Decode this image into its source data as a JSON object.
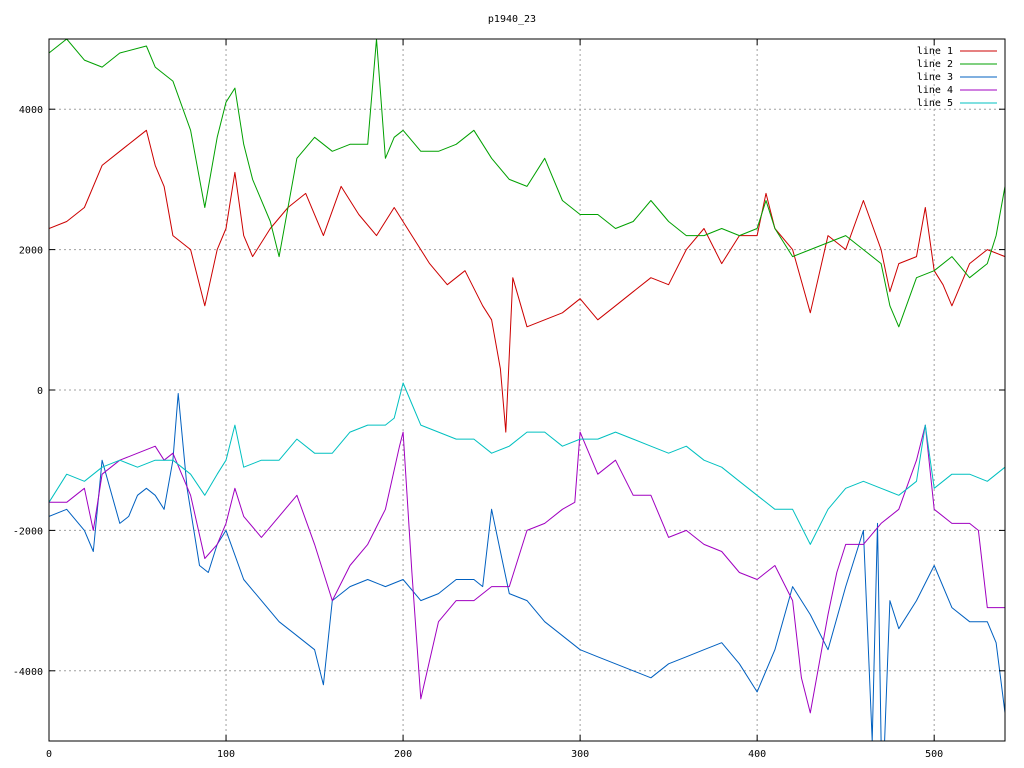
{
  "chart_data": {
    "type": "line",
    "title": "p1940_23",
    "xlabel": "",
    "ylabel": "",
    "xlim": [
      0,
      540
    ],
    "ylim": [
      -5000,
      5000
    ],
    "xticks": [
      0,
      100,
      200,
      300,
      400,
      500
    ],
    "yticks": [
      -4000,
      -2000,
      0,
      2000,
      4000
    ],
    "ytick_labels": [
      "-4000",
      "-2000",
      "0",
      "2000",
      "4000"
    ],
    "grid": true,
    "legend_position": "top-right",
    "series": [
      {
        "name": "line 1",
        "color": "#cc0000",
        "x": [
          0,
          10,
          20,
          30,
          40,
          50,
          55,
          60,
          65,
          70,
          80,
          88,
          95,
          100,
          105,
          110,
          115,
          125,
          135,
          145,
          155,
          165,
          175,
          185,
          195,
          205,
          215,
          225,
          235,
          245,
          250,
          255,
          258,
          262,
          270,
          280,
          290,
          300,
          310,
          320,
          330,
          340,
          350,
          360,
          370,
          380,
          390,
          400,
          405,
          410,
          420,
          430,
          440,
          450,
          460,
          470,
          475,
          480,
          490,
          495,
          500,
          505,
          510,
          520,
          530,
          540
        ],
        "y": [
          2300,
          2400,
          2600,
          3200,
          3400,
          3600,
          3700,
          3200,
          2900,
          2200,
          2000,
          1200,
          2000,
          2300,
          3100,
          2200,
          1900,
          2300,
          2600,
          2800,
          2200,
          2900,
          2500,
          2200,
          2600,
          2200,
          1800,
          1500,
          1700,
          1200,
          1000,
          300,
          -600,
          1600,
          900,
          1000,
          1100,
          1300,
          1000,
          1200,
          1400,
          1600,
          1500,
          2000,
          2300,
          1800,
          2200,
          2200,
          2800,
          2300,
          2000,
          1100,
          2200,
          2000,
          2700,
          2000,
          1400,
          1800,
          1900,
          2600,
          1700,
          1500,
          1200,
          1800,
          2000,
          1900
        ]
      },
      {
        "name": "line 2",
        "color": "#00a000",
        "x": [
          0,
          10,
          20,
          30,
          40,
          55,
          60,
          70,
          80,
          88,
          95,
          100,
          105,
          110,
          115,
          125,
          130,
          140,
          150,
          160,
          170,
          180,
          185,
          190,
          195,
          200,
          210,
          220,
          230,
          240,
          250,
          260,
          270,
          280,
          290,
          300,
          310,
          320,
          330,
          340,
          350,
          360,
          370,
          380,
          390,
          400,
          405,
          410,
          420,
          430,
          440,
          450,
          460,
          470,
          475,
          480,
          490,
          500,
          510,
          520,
          530,
          535,
          540
        ],
        "y": [
          4800,
          5000,
          4700,
          4600,
          4800,
          4900,
          4600,
          4400,
          3700,
          2600,
          3600,
          4100,
          4300,
          3500,
          3000,
          2400,
          1900,
          3300,
          3600,
          3400,
          3500,
          3500,
          5000,
          3300,
          3600,
          3700,
          3400,
          3400,
          3500,
          3700,
          3300,
          3000,
          2900,
          3300,
          2700,
          2500,
          2500,
          2300,
          2400,
          2700,
          2400,
          2200,
          2200,
          2300,
          2200,
          2300,
          2700,
          2300,
          1900,
          2000,
          2100,
          2200,
          2000,
          1800,
          1200,
          900,
          1600,
          1700,
          1900,
          1600,
          1800,
          2200,
          2900
        ]
      },
      {
        "name": "line 3",
        "color": "#0060c0",
        "x": [
          0,
          10,
          20,
          25,
          30,
          40,
          45,
          50,
          55,
          60,
          65,
          70,
          73,
          78,
          85,
          90,
          95,
          100,
          110,
          120,
          130,
          140,
          150,
          155,
          160,
          170,
          180,
          190,
          200,
          210,
          220,
          230,
          240,
          245,
          250,
          255,
          260,
          270,
          280,
          290,
          300,
          310,
          320,
          330,
          340,
          350,
          360,
          370,
          380,
          390,
          400,
          410,
          420,
          430,
          440,
          450,
          460,
          465,
          468,
          470,
          472,
          475,
          480,
          490,
          500,
          510,
          520,
          530,
          535,
          540
        ],
        "y": [
          -1800,
          -1700,
          -2000,
          -2300,
          -1000,
          -1900,
          -1800,
          -1500,
          -1400,
          -1500,
          -1700,
          -1000,
          -50,
          -1400,
          -2500,
          -2600,
          -2200,
          -2000,
          -2700,
          -3000,
          -3300,
          -3500,
          -3700,
          -4200,
          -3000,
          -2800,
          -2700,
          -2800,
          -2700,
          -3000,
          -2900,
          -2700,
          -2700,
          -2800,
          -1700,
          -2300,
          -2900,
          -3000,
          -3300,
          -3500,
          -3700,
          -3800,
          -3900,
          -4000,
          -4100,
          -3900,
          -3800,
          -3700,
          -3600,
          -3900,
          -4300,
          -3700,
          -2800,
          -3200,
          -3700,
          -2800,
          -2000,
          -5000,
          -1900,
          -5000,
          -5000,
          -3000,
          -3400,
          -3000,
          -2500,
          -3100,
          -3300,
          -3300,
          -3600,
          -4600
        ]
      },
      {
        "name": "line 4",
        "color": "#a000c0",
        "x": [
          0,
          10,
          20,
          25,
          30,
          40,
          50,
          60,
          65,
          70,
          80,
          88,
          95,
          100,
          105,
          110,
          120,
          130,
          140,
          150,
          160,
          170,
          180,
          190,
          198,
          200,
          205,
          210,
          220,
          230,
          240,
          250,
          260,
          270,
          280,
          290,
          297,
          300,
          310,
          320,
          330,
          340,
          350,
          360,
          370,
          380,
          390,
          400,
          410,
          420,
          425,
          430,
          440,
          445,
          450,
          460,
          470,
          480,
          490,
          495,
          500,
          510,
          520,
          525,
          530,
          540
        ],
        "y": [
          -1600,
          -1600,
          -1400,
          -2000,
          -1200,
          -1000,
          -900,
          -800,
          -1000,
          -900,
          -1500,
          -2400,
          -2200,
          -1900,
          -1400,
          -1800,
          -2100,
          -1800,
          -1500,
          -2200,
          -3000,
          -2500,
          -2200,
          -1700,
          -800,
          -600,
          -2600,
          -4400,
          -3300,
          -3000,
          -3000,
          -2800,
          -2800,
          -2000,
          -1900,
          -1700,
          -1600,
          -600,
          -1200,
          -1000,
          -1500,
          -1500,
          -2100,
          -2000,
          -2200,
          -2300,
          -2600,
          -2700,
          -2500,
          -3000,
          -4100,
          -4600,
          -3200,
          -2600,
          -2200,
          -2200,
          -1900,
          -1700,
          -1000,
          -500,
          -1700,
          -1900,
          -1900,
          -2000,
          -3100,
          -3100
        ]
      },
      {
        "name": "line 5",
        "color": "#00c0c0",
        "x": [
          0,
          10,
          20,
          30,
          40,
          50,
          60,
          70,
          80,
          88,
          95,
          100,
          105,
          110,
          120,
          130,
          140,
          150,
          160,
          170,
          180,
          190,
          195,
          200,
          205,
          210,
          220,
          230,
          240,
          250,
          260,
          270,
          280,
          290,
          300,
          310,
          320,
          330,
          340,
          350,
          360,
          370,
          380,
          390,
          400,
          410,
          420,
          430,
          440,
          450,
          460,
          470,
          480,
          490,
          495,
          500,
          510,
          520,
          530,
          540
        ],
        "y": [
          -1600,
          -1200,
          -1300,
          -1100,
          -1000,
          -1100,
          -1000,
          -1000,
          -1200,
          -1500,
          -1200,
          -1000,
          -500,
          -1100,
          -1000,
          -1000,
          -700,
          -900,
          -900,
          -600,
          -500,
          -500,
          -400,
          100,
          -200,
          -500,
          -600,
          -700,
          -700,
          -900,
          -800,
          -600,
          -600,
          -800,
          -700,
          -700,
          -600,
          -700,
          -800,
          -900,
          -800,
          -1000,
          -1100,
          -1300,
          -1500,
          -1700,
          -1700,
          -2200,
          -1700,
          -1400,
          -1300,
          -1400,
          -1500,
          -1300,
          -500,
          -1400,
          -1200,
          -1200,
          -1300,
          -1100
        ]
      }
    ]
  }
}
